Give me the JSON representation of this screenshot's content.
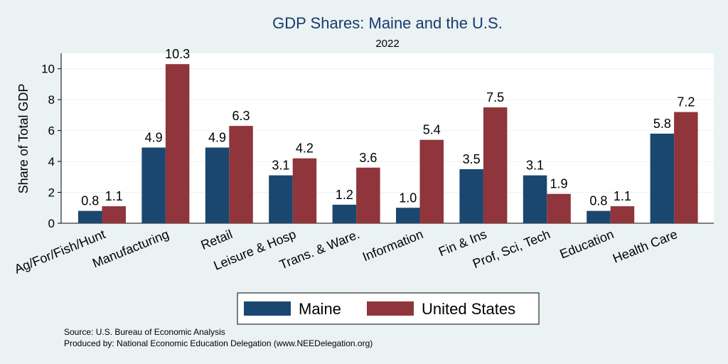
{
  "chart_data": {
    "type": "bar",
    "title": "GDP Shares: Maine and the U.S.",
    "subtitle": "2022",
    "ylabel": "Share of Total GDP",
    "xlabel": "",
    "ylim": [
      0,
      11
    ],
    "yticks": [
      0,
      2,
      4,
      6,
      8,
      10
    ],
    "grid": true,
    "legend_position": "bottom",
    "categories": [
      "Ag/For/Fish/Hunt",
      "Manufacturing",
      "Retail",
      "Leisure & Hosp",
      "Trans. & Ware.",
      "Information",
      "Fin & Ins",
      "Prof, Sci, Tech",
      "Education",
      "Health Care"
    ],
    "series": [
      {
        "name": "Maine",
        "color": "#1a476f",
        "values": [
          0.8,
          4.9,
          4.9,
          3.1,
          1.2,
          1.0,
          3.5,
          3.1,
          0.8,
          5.8
        ],
        "labels": [
          "0.8",
          "4.9",
          "4.9",
          "3.1",
          "1.2",
          "1.0",
          "3.5",
          "3.1",
          "0.8",
          "5.8"
        ]
      },
      {
        "name": "United States",
        "color": "#90353b",
        "values": [
          1.1,
          10.3,
          6.3,
          4.2,
          3.6,
          5.4,
          7.5,
          1.9,
          1.1,
          7.2
        ],
        "labels": [
          "1.1",
          "10.3",
          "6.3",
          "4.2",
          "3.6",
          "5.4",
          "7.5",
          "1.9",
          "1.1",
          "7.2"
        ]
      }
    ]
  },
  "notes": {
    "source": "Source: U.S. Bureau of Economic Analysis",
    "produced_by": "Produced by: National Economic Education Delegation (www.NEEDelegation.org)"
  }
}
